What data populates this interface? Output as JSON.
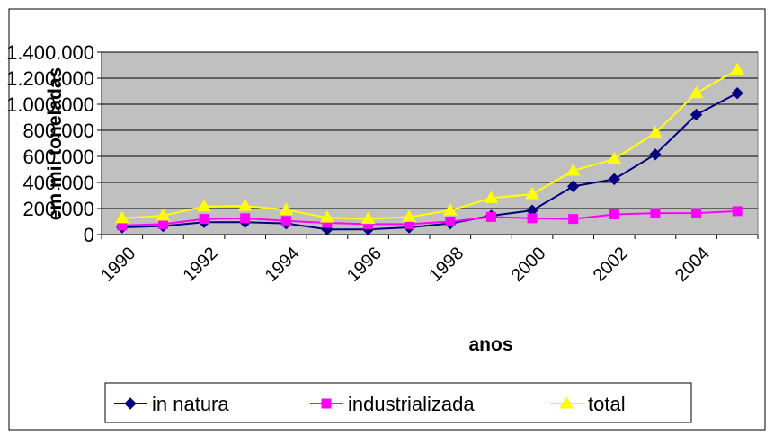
{
  "chart_data": {
    "type": "line",
    "x_label": "anos",
    "y_label": "em mil toneladas",
    "categories": [
      "1990",
      null,
      "1992",
      null,
      "1994",
      null,
      "1996",
      null,
      "1998",
      null,
      "2000",
      null,
      "2002",
      null,
      "2004",
      null
    ],
    "series": [
      {
        "name": "in natura",
        "color": "#000080",
        "marker": "diamond",
        "values": [
          55000,
          65000,
          95000,
          95000,
          85000,
          40000,
          40000,
          55000,
          85000,
          145000,
          185000,
          370000,
          425000,
          615000,
          920000,
          1085000
        ]
      },
      {
        "name": "industrializada",
        "color": "#ff00ff",
        "marker": "square",
        "values": [
          70000,
          80000,
          120000,
          125000,
          105000,
          90000,
          80000,
          80000,
          100000,
          135000,
          125000,
          120000,
          155000,
          165000,
          165000,
          180000
        ]
      },
      {
        "name": "total",
        "color": "#ffff00",
        "marker": "triangle",
        "values": [
          125000,
          145000,
          215000,
          220000,
          190000,
          130000,
          120000,
          135000,
          185000,
          280000,
          310000,
          490000,
          580000,
          780000,
          1085000,
          1265000
        ]
      }
    ],
    "ylim": [
      0,
      1400000
    ],
    "yticks": [
      0,
      {
        "value": 200000,
        "label": "200.000"
      },
      {
        "value": 400000,
        "label": "400.000"
      },
      {
        "value": 600000,
        "label": "600.000"
      },
      {
        "value": 800000,
        "label": "800.000"
      },
      {
        "value": 1000000,
        "label": "1.000.000"
      },
      {
        "value": 1200000,
        "label": "1.200.000"
      },
      {
        "value": 1400000,
        "label": "1.400.000"
      }
    ],
    "grid": true,
    "legend": "bottom"
  }
}
